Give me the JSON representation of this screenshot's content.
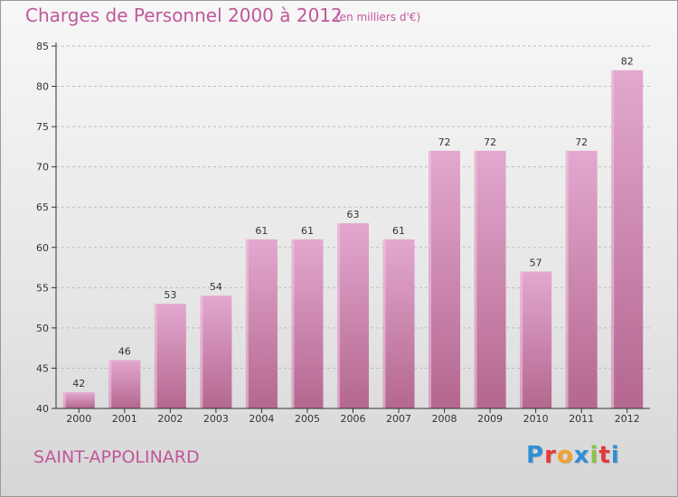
{
  "header": {
    "title": "Charges de Personnel 2000 à 2012",
    "subtitle": "(en milliers d'€)"
  },
  "footer": {
    "commune": "SAINT-APPOLINARD",
    "logo_letters": [
      "P",
      "r",
      "o",
      "x",
      "i",
      "t",
      "i"
    ],
    "logo_colors": [
      "#2f8fd6",
      "#e23b3b",
      "#f2a12a",
      "#2f8fd6",
      "#8bc34a",
      "#e23b3b",
      "#2f8fd6"
    ]
  },
  "colors": {
    "bar_top": "#e3a8cf",
    "bar_bottom": "#b4678f",
    "bar_side": "#f0c8e2",
    "axis": "#333333",
    "grid": "#bdbdbd"
  },
  "chart_data": {
    "type": "bar",
    "categories": [
      "2000",
      "2001",
      "2002",
      "2003",
      "2004",
      "2005",
      "2006",
      "2007",
      "2008",
      "2009",
      "2010",
      "2011",
      "2012"
    ],
    "values": [
      42,
      46,
      53,
      54,
      61,
      61,
      63,
      61,
      72,
      72,
      57,
      72,
      82
    ],
    "title": "Charges de Personnel 2000 à 2012",
    "xlabel": "",
    "ylabel": "",
    "ylim": [
      40,
      85
    ],
    "yticks": [
      40,
      45,
      50,
      55,
      60,
      65,
      70,
      75,
      80,
      85
    ],
    "grid": "horizontal-dashed"
  }
}
